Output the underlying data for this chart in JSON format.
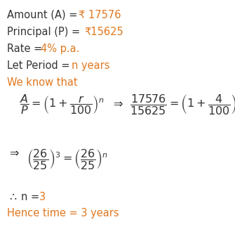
{
  "bg_color": "#ffffff",
  "black": "#333333",
  "orange": "#e07820",
  "fig_w": 3.35,
  "fig_h": 3.26,
  "dpi": 100,
  "fs": 10.5,
  "fs_math": 11.5
}
